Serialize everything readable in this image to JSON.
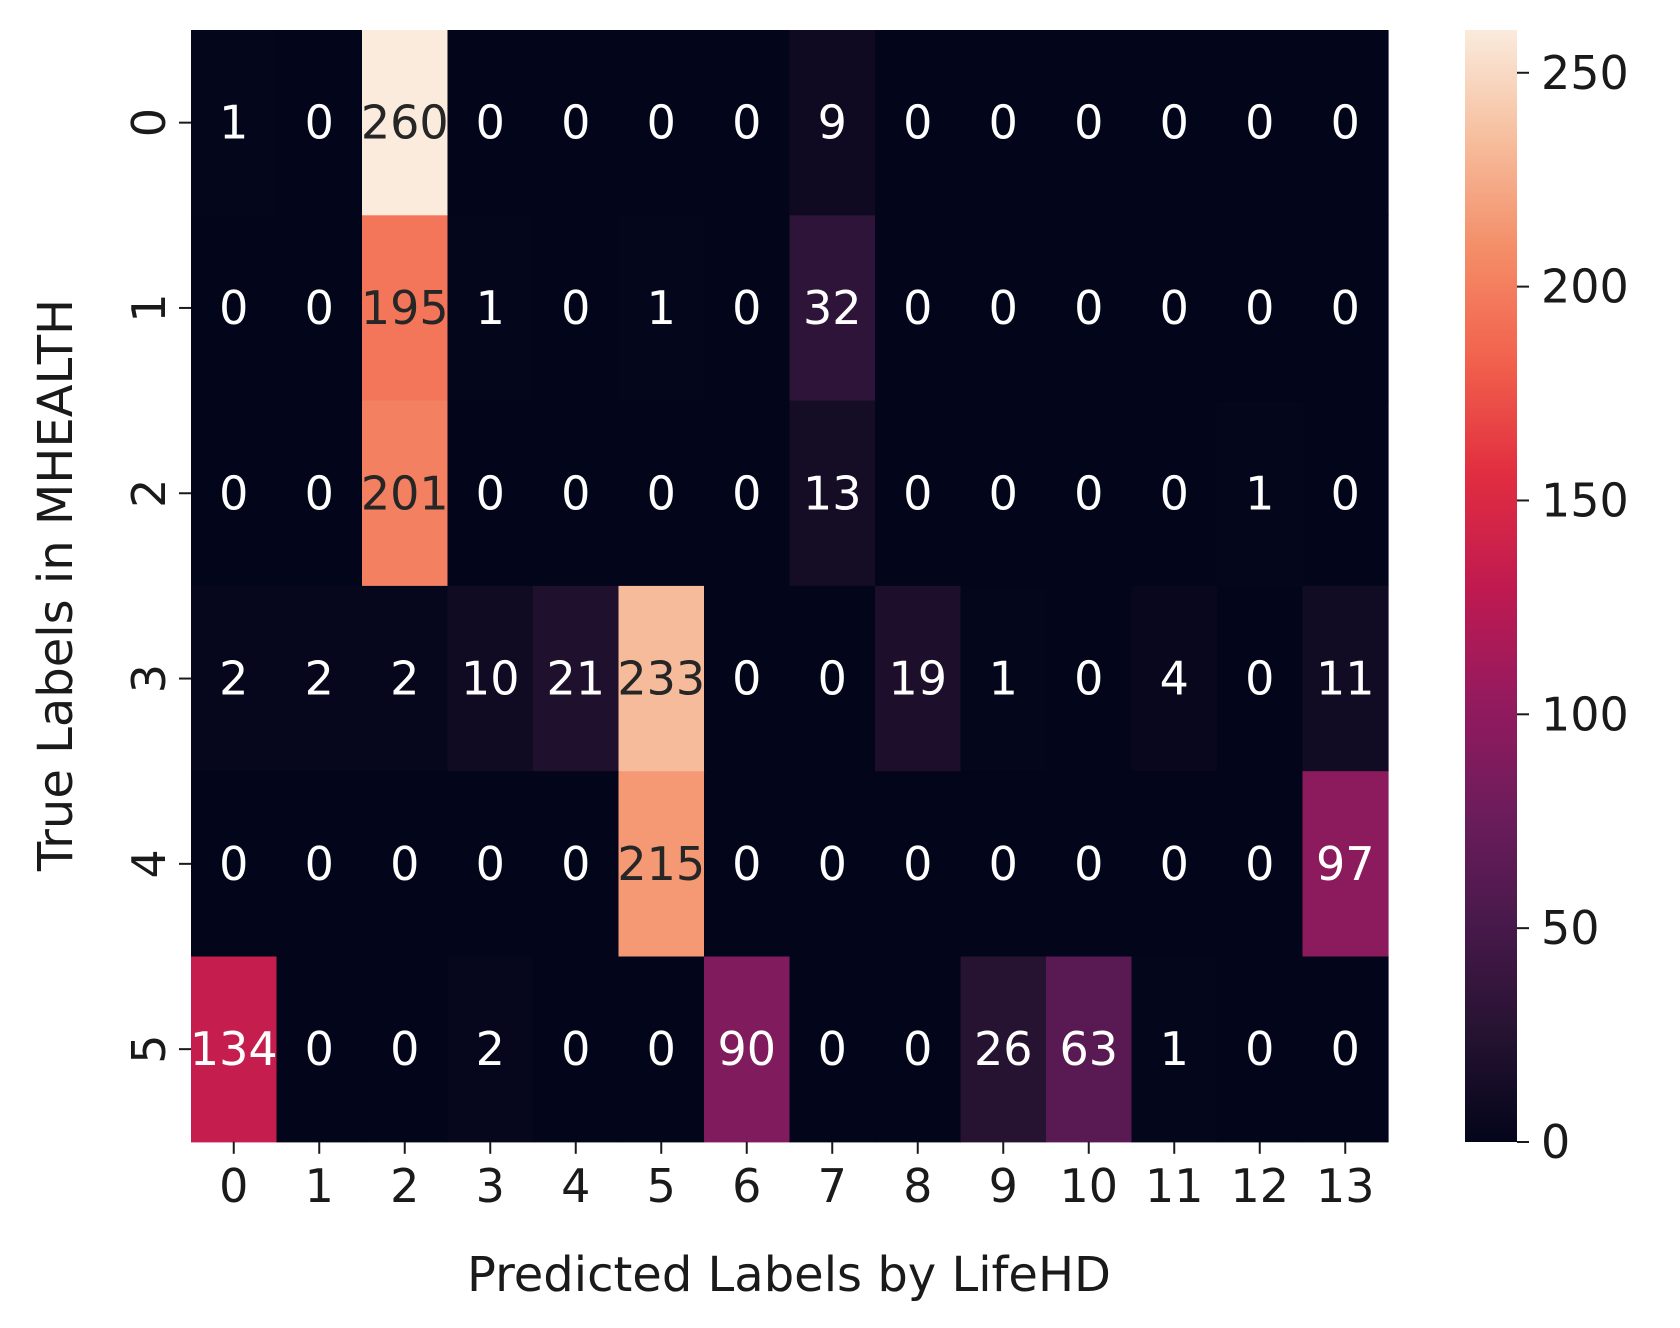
{
  "chart_data": {
    "type": "heatmap",
    "xlabel": "Predicted Labels by LifeHD",
    "ylabel": "True Labels in MHEALTH",
    "x_categories": [
      "0",
      "1",
      "2",
      "3",
      "4",
      "5",
      "6",
      "7",
      "8",
      "9",
      "10",
      "11",
      "12",
      "13"
    ],
    "y_categories": [
      "0",
      "1",
      "2",
      "3",
      "4",
      "5"
    ],
    "values": [
      [
        1,
        0,
        260,
        0,
        0,
        0,
        0,
        9,
        0,
        0,
        0,
        0,
        0,
        0
      ],
      [
        0,
        0,
        195,
        1,
        0,
        1,
        0,
        32,
        0,
        0,
        0,
        0,
        0,
        0
      ],
      [
        0,
        0,
        201,
        0,
        0,
        0,
        0,
        13,
        0,
        0,
        0,
        0,
        1,
        0
      ],
      [
        2,
        2,
        2,
        10,
        21,
        233,
        0,
        0,
        19,
        1,
        0,
        4,
        0,
        11
      ],
      [
        0,
        0,
        0,
        0,
        0,
        215,
        0,
        0,
        0,
        0,
        0,
        0,
        0,
        97
      ],
      [
        134,
        0,
        0,
        2,
        0,
        0,
        90,
        0,
        0,
        26,
        63,
        1,
        0,
        0
      ]
    ],
    "colorbar": {
      "range": [
        0,
        260
      ],
      "ticks": [
        "0",
        "50",
        "100",
        "150",
        "200",
        "250"
      ],
      "colormap": "rocket"
    }
  }
}
